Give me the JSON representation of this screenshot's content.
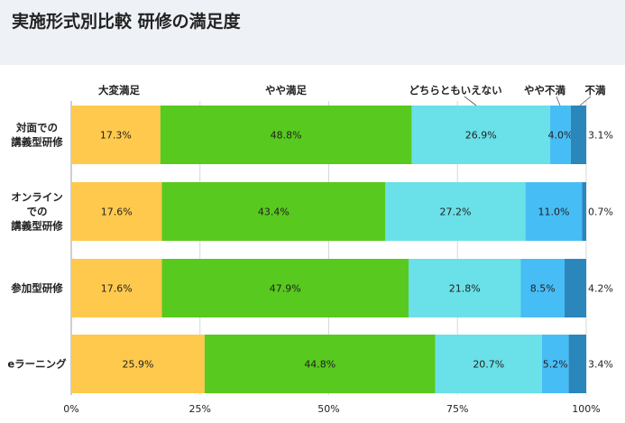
{
  "title": "実施形式別比較 研修の満足度",
  "chart_data": {
    "type": "bar",
    "orientation": "horizontal",
    "stacked": true,
    "percent": true,
    "title": "実施形式別比較 研修の満足度",
    "categories": [
      [
        "対面での",
        "講義型研修"
      ],
      [
        "オンライン",
        "での",
        "講義型研修"
      ],
      [
        "参加型研修"
      ],
      [
        "eラーニング"
      ]
    ],
    "series": [
      {
        "name": "大変満足",
        "color": "#ffc94d",
        "values": [
          17.3,
          17.6,
          17.6,
          25.9
        ]
      },
      {
        "name": "やや満足",
        "color": "#58c91e",
        "values": [
          48.8,
          43.4,
          47.9,
          44.8
        ]
      },
      {
        "name": "どちらともいえない",
        "color": "#6ae0e8",
        "values": [
          26.9,
          27.2,
          21.8,
          20.7
        ]
      },
      {
        "name": "やや不満",
        "color": "#47bdf5",
        "values": [
          4.0,
          11.0,
          8.5,
          5.2
        ]
      },
      {
        "name": "不満",
        "color": "#2b86bb",
        "values": [
          3.1,
          0.7,
          4.2,
          3.4
        ]
      }
    ],
    "value_labels": [
      [
        "17.3%",
        "48.8%",
        "26.9%",
        "4.0%",
        "3.1%"
      ],
      [
        "17.6%",
        "43.4%",
        "27.2%",
        "11.0%",
        "0.7%"
      ],
      [
        "17.6%",
        "47.9%",
        "21.8%",
        "8.5%",
        "4.2%"
      ],
      [
        "25.9%",
        "44.8%",
        "20.7%",
        "5.2%",
        "3.4%"
      ]
    ],
    "x_ticks": [
      "0%",
      "25%",
      "50%",
      "75%",
      "100%"
    ],
    "xlim": [
      0,
      100
    ],
    "grid": true,
    "legend": "top"
  }
}
